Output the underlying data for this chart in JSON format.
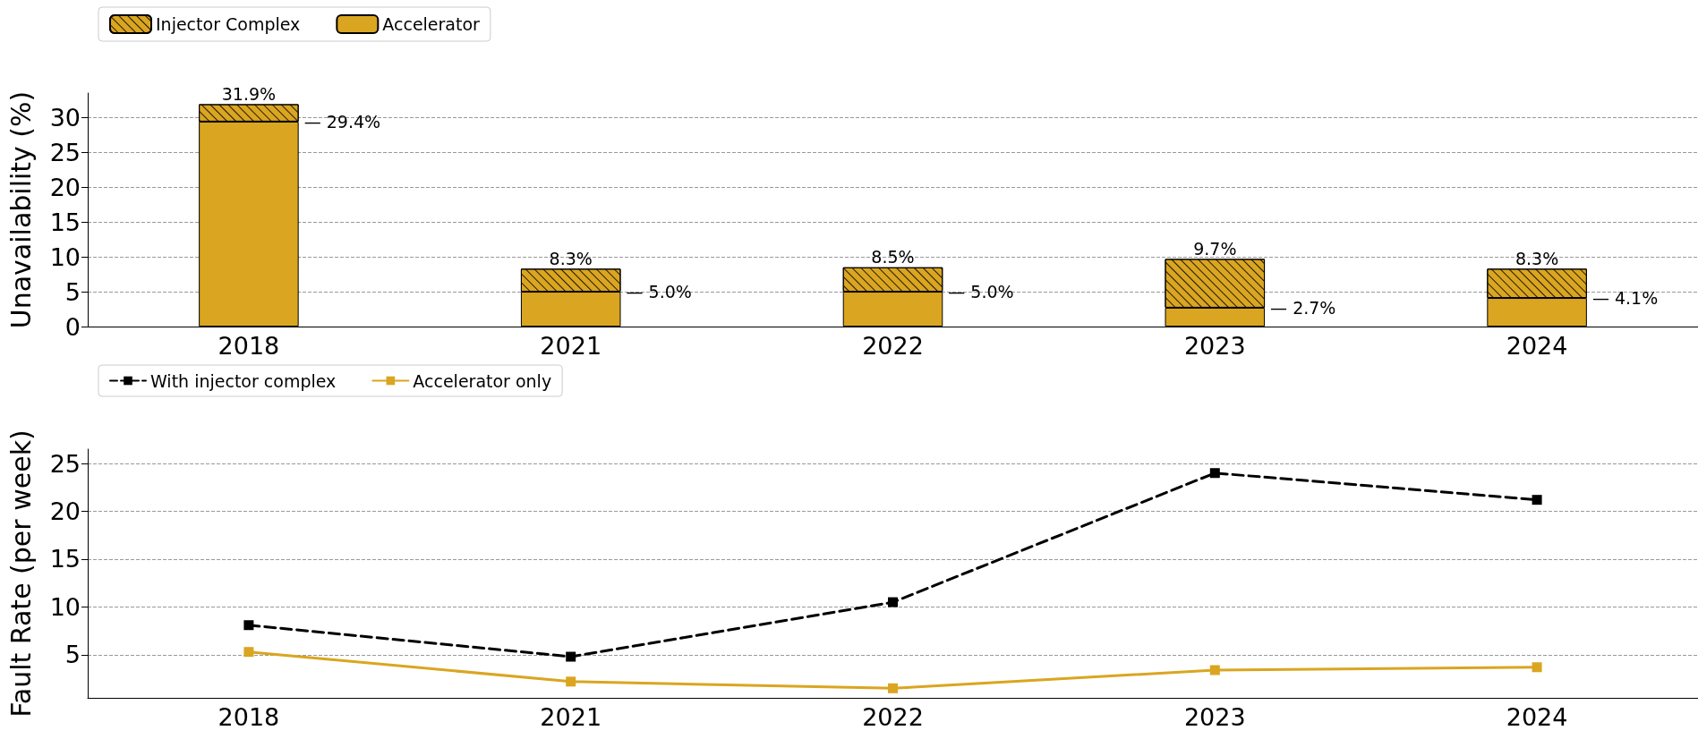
{
  "chart_data": [
    {
      "type": "bar",
      "stacked": true,
      "ylabel": "Unavailability (%)",
      "categories": [
        "2018",
        "2021",
        "2022",
        "2023",
        "2024"
      ],
      "ylim": [
        0,
        33.5
      ],
      "yticks": [
        0,
        5,
        10,
        15,
        20,
        25,
        30
      ],
      "grid": "y",
      "legend": "top left",
      "series": [
        {
          "name": "Accelerator",
          "color": "#daa520",
          "values": [
            29.4,
            5.0,
            5.0,
            2.7,
            4.1
          ]
        },
        {
          "name": "Injector Complex",
          "color": "#daa520",
          "values": [
            2.5,
            3.3,
            3.5,
            7.0,
            4.2
          ]
        }
      ],
      "totals": [
        "31.9%",
        "8.3%",
        "8.5%",
        "9.7%",
        "8.3%"
      ],
      "annotations": [
        "— 29.4%",
        "— 5.0%",
        "— 5.0%",
        "— 2.7%",
        "— 4.1%"
      ]
    },
    {
      "type": "line",
      "ylabel": "Fault Rate (per week)",
      "categories": [
        "2018",
        "2021",
        "2022",
        "2023",
        "2024"
      ],
      "ylim": [
        0.5,
        26.5
      ],
      "yticks": [
        5,
        10,
        15,
        20,
        25
      ],
      "grid": "y",
      "legend": "top left",
      "marker": "square",
      "series": [
        {
          "name": "With injector complex",
          "color": "#000000",
          "line_style": "dashed",
          "values": [
            8.1,
            4.8,
            10.5,
            24.0,
            21.2
          ]
        },
        {
          "name": "Accelerator only",
          "color": "#daa520",
          "line_style": "solid",
          "values": [
            5.3,
            2.2,
            1.5,
            3.4,
            3.7
          ]
        }
      ]
    }
  ]
}
